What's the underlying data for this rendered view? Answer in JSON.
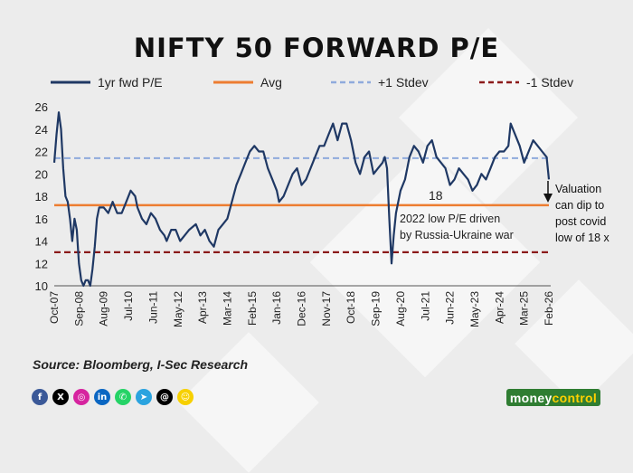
{
  "title": "NIFTY 50 FORWARD P/E",
  "source": "Source: Bloomberg, I-Sec Research",
  "brand": {
    "part1": "money",
    "part2": "control"
  },
  "social_icons": [
    {
      "name": "facebook-icon",
      "glyph": "f",
      "color": "#3b5998"
    },
    {
      "name": "x-icon",
      "glyph": "X",
      "color": "#000000"
    },
    {
      "name": "instagram-icon",
      "glyph": "◎",
      "color": "#d6249f"
    },
    {
      "name": "linkedin-icon",
      "glyph": "in",
      "color": "#0a66c2"
    },
    {
      "name": "whatsapp-icon",
      "glyph": "✆",
      "color": "#25d366"
    },
    {
      "name": "telegram-icon",
      "glyph": "➤",
      "color": "#2aa3df"
    },
    {
      "name": "threads-icon",
      "glyph": "@",
      "color": "#000000"
    },
    {
      "name": "snapchat-icon",
      "glyph": "☺",
      "color": "#f7d000"
    }
  ],
  "chart_data": {
    "type": "line",
    "title": "NIFTY 50 FORWARD P/E",
    "xlabel": "",
    "ylabel": "",
    "ylim": [
      10,
      26
    ],
    "xlim": [
      "2007-10",
      "2026-02"
    ],
    "yticks": [
      10,
      12,
      14,
      16,
      18,
      20,
      22,
      24,
      26
    ],
    "xticks": [
      "Oct-07",
      "Sep-08",
      "Aug-09",
      "Jul-10",
      "Jun-11",
      "May-12",
      "Apr-13",
      "Mar-14",
      "Feb-15",
      "Jan-16",
      "Dec-16",
      "Nov-17",
      "Oct-18",
      "Sep-19",
      "Aug-20",
      "Jul-21",
      "Jun-22",
      "May-23",
      "Apr-24",
      "Mar-25",
      "Feb-26"
    ],
    "grid": false,
    "legend": {
      "placement": "top",
      "entries": [
        {
          "label": "1yr fwd P/E",
          "color": "#1f3864",
          "style": "solid"
        },
        {
          "label": "Avg",
          "color": "#ed7d31",
          "style": "solid"
        },
        {
          "label": "+1 Stdev",
          "color": "#8faadc",
          "style": "dashed"
        },
        {
          "label": "-1 Stdev",
          "color": "#8b1a1a",
          "style": "dashed"
        }
      ]
    },
    "reference_lines": {
      "avg": 17.2,
      "plus_1_stdev": 21.4,
      "minus_1_stdev": 13.0
    },
    "series": [
      {
        "name": "1yr fwd P/E",
        "color": "#1f3864",
        "x": [
          "2007-10",
          "2007-11",
          "2007-12",
          "2008-01",
          "2008-02",
          "2008-03",
          "2008-04",
          "2008-05",
          "2008-06",
          "2008-07",
          "2008-08",
          "2008-09",
          "2008-10",
          "2008-11",
          "2008-12",
          "2009-01",
          "2009-02",
          "2009-03",
          "2009-04",
          "2009-05",
          "2009-06",
          "2009-08",
          "2009-10",
          "2009-12",
          "2010-02",
          "2010-04",
          "2010-06",
          "2010-08",
          "2010-10",
          "2010-11",
          "2011-01",
          "2011-03",
          "2011-05",
          "2011-07",
          "2011-09",
          "2011-11",
          "2011-12",
          "2012-02",
          "2012-04",
          "2012-06",
          "2012-08",
          "2012-10",
          "2013-01",
          "2013-03",
          "2013-05",
          "2013-07",
          "2013-09",
          "2013-11",
          "2014-01",
          "2014-03",
          "2014-05",
          "2014-07",
          "2014-09",
          "2014-11",
          "2015-01",
          "2015-03",
          "2015-05",
          "2015-07",
          "2015-09",
          "2015-11",
          "2016-01",
          "2016-02",
          "2016-04",
          "2016-06",
          "2016-08",
          "2016-10",
          "2016-12",
          "2017-02",
          "2017-04",
          "2017-06",
          "2017-08",
          "2017-10",
          "2017-12",
          "2018-02",
          "2018-04",
          "2018-06",
          "2018-08",
          "2018-10",
          "2018-12",
          "2019-02",
          "2019-04",
          "2019-06",
          "2019-08",
          "2019-10",
          "2019-12",
          "2020-01",
          "2020-02",
          "2020-03",
          "2020-04",
          "2020-05",
          "2020-06",
          "2020-08",
          "2020-10",
          "2020-12",
          "2021-02",
          "2021-04",
          "2021-06",
          "2021-08",
          "2021-10",
          "2021-12",
          "2022-02",
          "2022-04",
          "2022-06",
          "2022-08",
          "2022-10",
          "2022-12",
          "2023-02",
          "2023-04",
          "2023-06",
          "2023-08",
          "2023-10",
          "2023-12",
          "2024-02",
          "2024-04",
          "2024-06",
          "2024-08",
          "2024-09",
          "2024-11",
          "2025-01",
          "2025-03",
          "2025-05",
          "2025-07",
          "2025-09",
          "2025-11",
          "2026-01",
          "2026-02"
        ],
        "values": [
          21.0,
          23.5,
          25.5,
          24.0,
          20.5,
          18.0,
          17.5,
          16.0,
          14.0,
          16.0,
          15.0,
          12.0,
          10.5,
          10.0,
          10.5,
          10.5,
          10.0,
          11.5,
          13.5,
          16.0,
          17.0,
          17.0,
          16.5,
          17.5,
          16.5,
          16.5,
          17.5,
          18.5,
          18.0,
          17.0,
          16.0,
          15.5,
          16.5,
          16.0,
          15.0,
          14.5,
          14.0,
          15.0,
          15.0,
          14.0,
          14.5,
          15.0,
          15.5,
          14.5,
          15.0,
          14.0,
          13.5,
          15.0,
          15.5,
          16.0,
          17.5,
          19.0,
          20.0,
          21.0,
          22.0,
          22.5,
          22.0,
          22.0,
          20.5,
          19.5,
          18.5,
          17.5,
          18.0,
          19.0,
          20.0,
          20.5,
          19.0,
          19.5,
          20.5,
          21.5,
          22.5,
          22.5,
          23.5,
          24.5,
          23.0,
          24.5,
          24.5,
          23.0,
          21.0,
          20.0,
          21.5,
          22.0,
          20.0,
          20.5,
          21.0,
          21.5,
          20.5,
          16.0,
          12.0,
          14.5,
          16.5,
          18.5,
          19.5,
          21.5,
          22.5,
          22.0,
          21.0,
          22.5,
          23.0,
          21.5,
          21.0,
          20.5,
          19.0,
          19.5,
          20.5,
          20.0,
          19.5,
          18.5,
          19.0,
          20.0,
          19.5,
          20.5,
          21.5,
          22.0,
          22.0,
          22.5,
          24.5,
          23.5,
          22.5,
          21.0,
          22.0,
          23.0,
          22.5,
          22.0,
          21.5,
          19.5
        ]
      }
    ],
    "annotations": [
      {
        "text": "18"
      },
      {
        "text": "2022 low P/E driven by Russia-Ukraine war",
        "lines": [
          "2022 low P/E driven",
          "by Russia-Ukraine war"
        ]
      },
      {
        "text": "Valuation can dip to post covid low of 18 x",
        "lines": [
          "Valuation",
          "can dip to",
          "post covid",
          "low of 18 x"
        ]
      }
    ]
  }
}
